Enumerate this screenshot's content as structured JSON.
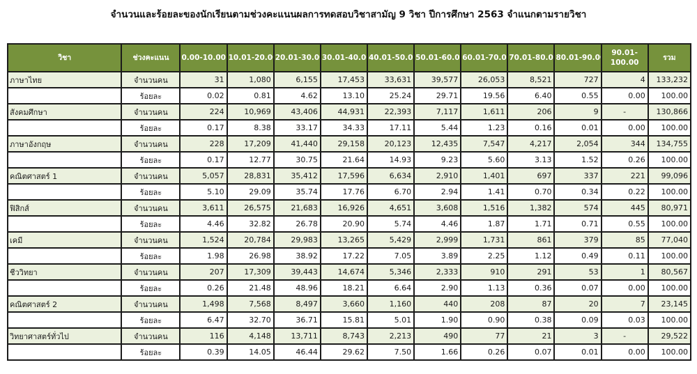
{
  "title": "จำนวนและร้อยละของนักเรียนตามช่วงคะแนนผลการทดสอบวิชาสามัญ 9 วิชา ปีการศึกษา 2563 จำแนกตามรายวิชา",
  "colors": {
    "header_bg": "#76923c",
    "header_text": "#ffffff",
    "count_row_bg": "#ebf1de",
    "pct_row_bg": "#ffffff",
    "border": "#1b1b1b"
  },
  "headers": [
    "วิชา",
    "ช่วงคะแนน",
    "0.00-10.00",
    "10.01-20.00",
    "20.01-30.00",
    "30.01-40.00",
    "40.01-50.00",
    "50.01-60.00",
    "60.01-70.00",
    "70.01-80.00",
    "80.01-90.00",
    "90.01-100.00",
    "รวม"
  ],
  "header_9001_line1": "90.01-",
  "header_9001_line2": "100.00",
  "row_types": {
    "count": "จำนวนคน",
    "pct": "ร้อยละ"
  },
  "rows": [
    {
      "subject": "ภาษาไทย",
      "count": [
        "31",
        "1,080",
        "6,155",
        "17,453",
        "33,631",
        "39,577",
        "26,053",
        "8,521",
        "727",
        "4",
        "133,232"
      ],
      "pct": [
        "0.02",
        "0.81",
        "4.62",
        "13.10",
        "25.24",
        "29.71",
        "19.56",
        "6.40",
        "0.55",
        "0.00",
        "100.00"
      ]
    },
    {
      "subject": "สังคมศึกษา",
      "count": [
        "224",
        "10,969",
        "43,406",
        "44,931",
        "22,393",
        "7,117",
        "1,611",
        "206",
        "9",
        "-",
        "130,866"
      ],
      "pct": [
        "0.17",
        "8.38",
        "33.17",
        "34.33",
        "17.11",
        "5.44",
        "1.23",
        "0.16",
        "0.01",
        "0.00",
        "100.00"
      ]
    },
    {
      "subject": "ภาษาอังกฤษ",
      "count": [
        "228",
        "17,209",
        "41,440",
        "29,158",
        "20,123",
        "12,435",
        "7,547",
        "4,217",
        "2,054",
        "344",
        "134,755"
      ],
      "pct": [
        "0.17",
        "12.77",
        "30.75",
        "21.64",
        "14.93",
        "9.23",
        "5.60",
        "3.13",
        "1.52",
        "0.26",
        "100.00"
      ]
    },
    {
      "subject": "คณิตศาสตร์ 1",
      "count": [
        "5,057",
        "28,831",
        "35,412",
        "17,596",
        "6,634",
        "2,910",
        "1,401",
        "697",
        "337",
        "221",
        "99,096"
      ],
      "pct": [
        "5.10",
        "29.09",
        "35.74",
        "17.76",
        "6.70",
        "2.94",
        "1.41",
        "0.70",
        "0.34",
        "0.22",
        "100.00"
      ]
    },
    {
      "subject": "ฟิสิกส์",
      "count": [
        "3,611",
        "26,575",
        "21,683",
        "16,926",
        "4,651",
        "3,608",
        "1,516",
        "1,382",
        "574",
        "445",
        "80,971"
      ],
      "pct": [
        "4.46",
        "32.82",
        "26.78",
        "20.90",
        "5.74",
        "4.46",
        "1.87",
        "1.71",
        "0.71",
        "0.55",
        "100.00"
      ]
    },
    {
      "subject": "เคมี",
      "count": [
        "1,524",
        "20,784",
        "29,983",
        "13,265",
        "5,429",
        "2,999",
        "1,731",
        "861",
        "379",
        "85",
        "77,040"
      ],
      "pct": [
        "1.98",
        "26.98",
        "38.92",
        "17.22",
        "7.05",
        "3.89",
        "2.25",
        "1.12",
        "0.49",
        "0.11",
        "100.00"
      ]
    },
    {
      "subject": "ชีววิทยา",
      "count": [
        "207",
        "17,309",
        "39,443",
        "14,674",
        "5,346",
        "2,333",
        "910",
        "291",
        "53",
        "1",
        "80,567"
      ],
      "pct": [
        "0.26",
        "21.48",
        "48.96",
        "18.21",
        "6.64",
        "2.90",
        "1.13",
        "0.36",
        "0.07",
        "0.00",
        "100.00"
      ]
    },
    {
      "subject": "คณิตศาสตร์ 2",
      "count": [
        "1,498",
        "7,568",
        "8,497",
        "3,660",
        "1,160",
        "440",
        "208",
        "87",
        "20",
        "7",
        "23,145"
      ],
      "pct": [
        "6.47",
        "32.70",
        "36.71",
        "15.81",
        "5.01",
        "1.90",
        "0.90",
        "0.38",
        "0.09",
        "0.03",
        "100.00"
      ]
    },
    {
      "subject": "วิทยาศาสตร์ทั่วไป",
      "count": [
        "116",
        "4,148",
        "13,711",
        "8,743",
        "2,213",
        "490",
        "77",
        "21",
        "3",
        "-",
        "29,522"
      ],
      "pct": [
        "0.39",
        "14.05",
        "46.44",
        "29.62",
        "7.50",
        "1.66",
        "0.26",
        "0.07",
        "0.01",
        "0.00",
        "100.00"
      ]
    }
  ]
}
